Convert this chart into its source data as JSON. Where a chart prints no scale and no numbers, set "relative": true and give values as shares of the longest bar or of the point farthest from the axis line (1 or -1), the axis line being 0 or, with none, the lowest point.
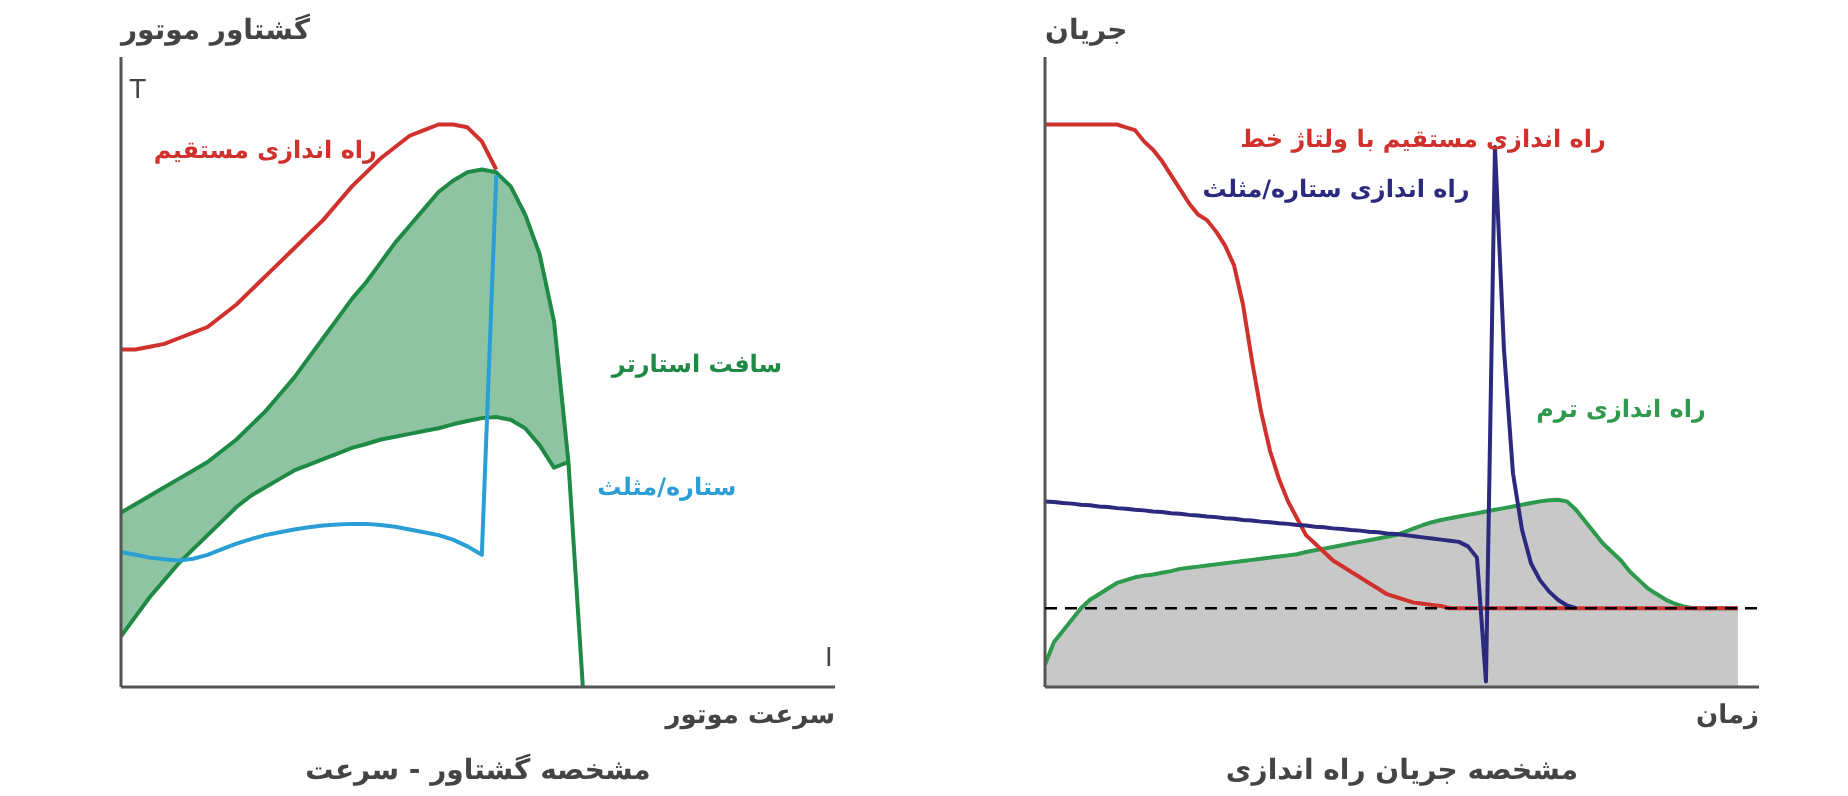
{
  "chart_data": [
    {
      "type": "line",
      "relative": true,
      "title": "مشخصه گشتاور - سرعت",
      "xlabel": "سرعت موتور",
      "ylabel": "گشتاور موتور",
      "annotations": [
        "T",
        "I"
      ],
      "categories": [
        null,
        null,
        null,
        null,
        null,
        null,
        null,
        null,
        null,
        null,
        null,
        null,
        null,
        null,
        null,
        null,
        null,
        null,
        null,
        null,
        null,
        null,
        null,
        null,
        null,
        null,
        null,
        null,
        null,
        null,
        null,
        null,
        null,
        null,
        null,
        null,
        null,
        null,
        null,
        null,
        null,
        null,
        null,
        null,
        null,
        null,
        null,
        null,
        null
      ],
      "series": [
        {
          "name": "سافت استارتر",
          "color": "#1f8a45",
          "values": [
            0.31,
            0.325,
            0.34,
            0.355,
            0.37,
            0.385,
            0.4,
            0.42,
            0.44,
            0.465,
            0.49,
            0.52,
            0.55,
            0.585,
            0.62,
            0.655,
            0.69,
            0.72,
            0.755,
            0.79,
            0.82,
            0.85,
            0.88,
            0.9,
            0.915,
            0.92,
            0.915,
            0.89,
            0.84,
            0.77,
            0.65,
            0.4,
            0,
            null,
            null,
            null,
            null,
            null,
            null,
            null,
            null,
            null,
            null,
            null,
            null,
            null,
            null,
            null,
            null
          ],
          "lower": [
            0.09,
            0.125,
            0.16,
            0.19,
            0.22,
            0.245,
            0.27,
            0.295,
            0.32,
            0.34,
            0.355,
            0.37,
            0.385,
            0.395,
            0.405,
            0.415,
            0.425,
            0.432,
            0.44,
            0.445,
            0.45,
            0.455,
            0.46,
            0.467,
            0.473,
            0.478,
            0.48,
            0.475,
            0.46,
            0.43,
            0.39,
            0.4,
            null,
            null,
            null,
            null,
            null,
            null,
            null,
            null,
            null,
            null,
            null,
            null,
            null,
            null,
            null,
            null,
            null
          ],
          "upper": [
            0.31,
            0.325,
            0.34,
            0.355,
            0.37,
            0.385,
            0.4,
            0.42,
            0.44,
            0.465,
            0.49,
            0.52,
            0.55,
            0.585,
            0.62,
            0.655,
            0.69,
            0.72,
            0.755,
            0.79,
            0.82,
            0.85,
            0.88,
            0.9,
            0.915,
            0.92,
            0.915,
            0.89,
            0.84,
            0.77,
            0.65,
            0.4,
            null,
            null,
            null,
            null,
            null,
            null,
            null,
            null,
            null,
            null,
            null,
            null,
            null,
            null,
            null,
            null,
            null
          ]
        },
        {
          "color": "#1f8a45",
          "values": [
            0.09,
            0.125,
            0.16,
            0.19,
            0.22,
            0.245,
            0.27,
            0.295,
            0.32,
            0.34,
            0.355,
            0.37,
            0.385,
            0.395,
            0.405,
            0.415,
            0.425,
            0.432,
            0.44,
            0.445,
            0.45,
            0.455,
            0.46,
            0.467,
            0.473,
            0.478,
            0.48,
            0.475,
            0.46,
            0.43,
            0.39,
            0.4,
            null,
            null,
            null,
            null,
            null,
            null,
            null,
            null,
            null,
            null,
            null,
            null,
            null,
            null,
            null,
            null,
            null
          ]
        },
        {
          "name": "ستاره/مثلث",
          "color": "#2a9fd6",
          "values": [
            0.24,
            0.235,
            0.23,
            0.227,
            0.225,
            0.228,
            0.235,
            0.245,
            0.255,
            0.263,
            0.27,
            0.275,
            0.28,
            0.284,
            0.287,
            0.289,
            0.29,
            0.29,
            0.288,
            0.285,
            0.28,
            0.275,
            0.27,
            0.262,
            0.25,
            0.235,
            0.91,
            null,
            null,
            null,
            null,
            null,
            null,
            null,
            null,
            null,
            null,
            null,
            null,
            null,
            null,
            null,
            null,
            null,
            null,
            null,
            null,
            null,
            null
          ]
        },
        {
          "name": "راه اندازی مستقیم",
          "color": "#d0312d",
          "values": [
            0.6,
            0.6,
            0.605,
            0.61,
            0.62,
            0.63,
            0.64,
            0.66,
            0.68,
            0.705,
            0.73,
            0.755,
            0.78,
            0.805,
            0.83,
            0.86,
            0.89,
            0.915,
            0.94,
            0.96,
            0.98,
            0.99,
            1.0,
            1.0,
            0.995,
            0.97,
            0.92,
            null,
            null,
            null,
            null,
            null,
            null,
            null,
            null,
            null,
            null,
            null,
            null,
            null,
            null,
            null,
            null,
            null,
            null,
            null,
            null,
            null,
            null
          ]
        }
      ]
    },
    {
      "type": "line",
      "relative": true,
      "title": "مشخصه جریان راه اندازی",
      "xlabel": "زمان",
      "ylabel": "جریان",
      "categories": [
        null,
        null,
        null,
        null,
        null,
        null,
        null,
        null,
        null,
        null,
        null,
        null,
        null,
        null,
        null,
        null,
        null,
        null,
        null,
        null,
        null,
        null,
        null,
        null,
        null,
        null,
        null,
        null,
        null,
        null,
        null,
        null,
        null,
        null,
        null,
        null,
        null,
        null,
        null,
        null,
        null,
        null,
        null,
        null,
        null,
        null,
        null,
        null,
        null,
        null,
        null,
        null,
        null,
        null,
        null,
        null,
        null,
        null,
        null,
        null,
        null,
        null,
        null,
        null,
        null,
        null,
        null,
        null,
        null,
        null,
        null,
        null,
        null,
        null,
        null,
        null,
        null,
        null
      ],
      "ref_lines": [
        {
          "axis": "y",
          "value": 0.14,
          "color": "#000000",
          "line_style": "dashed"
        }
      ],
      "series": [
        {
          "name": "راه اندازی ترم",
          "type": "area",
          "color": "#2e9a4e",
          "values": [
            0.04,
            0.08,
            0.1,
            0.12,
            0.14,
            0.155,
            0.165,
            0.175,
            0.185,
            0.19,
            0.195,
            0.198,
            0.2,
            0.203,
            0.206,
            0.21,
            0.212,
            0.214,
            0.216,
            0.218,
            0.22,
            0.222,
            0.224,
            0.226,
            0.228,
            0.23,
            0.232,
            0.234,
            0.236,
            0.24,
            0.243,
            0.246,
            0.249,
            0.252,
            0.255,
            0.258,
            0.261,
            0.264,
            0.267,
            0.27,
            0.276,
            0.282,
            0.288,
            0.293,
            0.297,
            0.3,
            0.303,
            0.306,
            0.309,
            0.312,
            0.315,
            0.318,
            0.321,
            0.324,
            0.327,
            0.33,
            0.332,
            0.333,
            0.33,
            0.315,
            0.295,
            0.275,
            0.255,
            0.24,
            0.225,
            0.205,
            0.19,
            0.175,
            0.165,
            0.155,
            0.148,
            0.143,
            0.14,
            0.14,
            0.14,
            0.14,
            0.14,
            0.14
          ]
        },
        {
          "name": "راه اندازی مستقیم با ولتاژ خط",
          "color": "#d0312d",
          "values": [
            1.0,
            1.0,
            1.0,
            1.0,
            1.0,
            1.0,
            1.0,
            1.0,
            1.0,
            0.995,
            0.99,
            0.97,
            0.955,
            0.935,
            0.91,
            0.885,
            0.86,
            0.84,
            0.83,
            0.81,
            0.785,
            0.75,
            0.68,
            0.58,
            0.49,
            0.42,
            0.37,
            0.33,
            0.3,
            0.27,
            0.255,
            0.24,
            0.225,
            0.215,
            0.205,
            0.195,
            0.185,
            0.175,
            0.165,
            0.16,
            0.155,
            0.15,
            0.148,
            0.146,
            0.144,
            0.14,
            0.14,
            0.14,
            0.14,
            0.14,
            0.14,
            0.14,
            0.14,
            0.14,
            0.14,
            0.14,
            0.14,
            0.14,
            0.14,
            0.14,
            0.14,
            0.14,
            0.14,
            0.14,
            0.14,
            0.14,
            0.14,
            0.14,
            0.14,
            0.14,
            0.14,
            0.14,
            0.14,
            0.14,
            0.14,
            0.14,
            0.14,
            0.14
          ]
        },
        {
          "name": "راه اندازی ستاره/مثلث",
          "color": "#2b2a7e",
          "values": [
            0.33,
            0.329,
            0.327,
            0.326,
            0.324,
            0.323,
            0.321,
            0.32,
            0.318,
            0.317,
            0.315,
            0.314,
            0.312,
            0.311,
            0.309,
            0.308,
            0.306,
            0.305,
            0.303,
            0.302,
            0.3,
            0.299,
            0.297,
            0.296,
            0.294,
            0.293,
            0.291,
            0.29,
            0.288,
            0.287,
            0.285,
            0.284,
            0.282,
            0.281,
            0.279,
            0.278,
            0.276,
            0.275,
            0.273,
            0.272,
            0.27,
            0.268,
            0.266,
            0.264,
            0.262,
            0.26,
            0.258,
            0.25,
            0.23,
            0.01,
            0.96,
            0.6,
            0.38,
            0.28,
            0.22,
            0.19,
            0.17,
            0.155,
            0.145,
            0.14,
            null,
            null,
            null,
            null,
            null,
            null,
            null,
            null,
            null,
            null,
            null,
            null,
            null,
            null,
            null,
            null,
            null,
            null
          ]
        }
      ]
    }
  ]
}
